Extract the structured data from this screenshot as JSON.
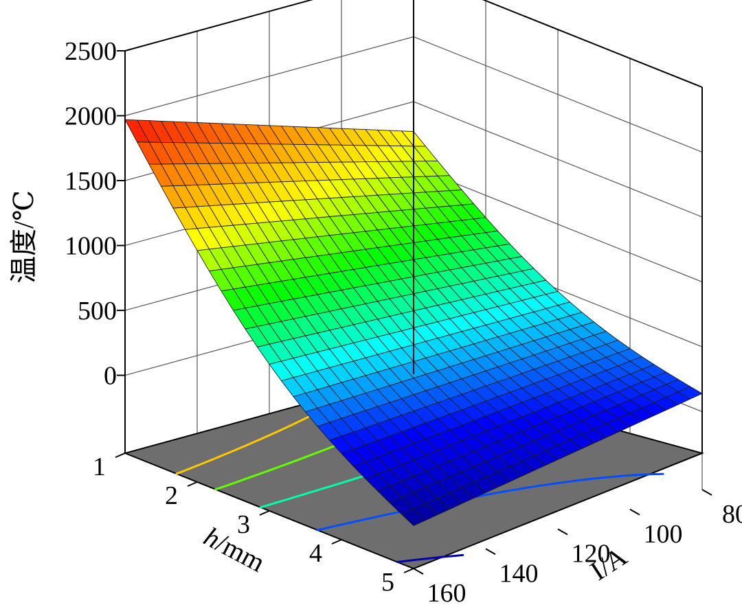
{
  "chart_data": {
    "type": "surface3d",
    "zlabel": "温度/℃",
    "xlabel_italic": "h",
    "xlabel_rest": "/mm",
    "ylabel": "I/A",
    "x_axis": {
      "name": "h",
      "unit": "mm",
      "ticks": [
        1,
        2,
        3,
        4,
        5
      ],
      "range": [
        1,
        5
      ]
    },
    "y_axis": {
      "name": "I",
      "unit": "A",
      "ticks": [
        80,
        100,
        120,
        140,
        160
      ],
      "range": [
        80,
        160
      ]
    },
    "z_axis": {
      "ticks": [
        0,
        500,
        1000,
        1500,
        2000,
        2500
      ],
      "range": [
        -600,
        2500
      ]
    },
    "corner_values": [
      {
        "h": 1,
        "I": 160,
        "temperature": 1970
      },
      {
        "h": 1,
        "I": 80,
        "temperature": 1270
      },
      {
        "h": 5,
        "I": 160,
        "temperature": -270
      },
      {
        "h": 5,
        "I": 80,
        "temperature": 20
      }
    ],
    "contour_levels": [
      -200,
      200,
      600,
      1000,
      1400
    ],
    "colormap": [
      "#00008f",
      "#0000ff",
      "#00ffff",
      "#00ff00",
      "#ffff00",
      "#ff8000",
      "#ff0000"
    ],
    "floor_color": "#6e6e6e",
    "grid": true
  }
}
